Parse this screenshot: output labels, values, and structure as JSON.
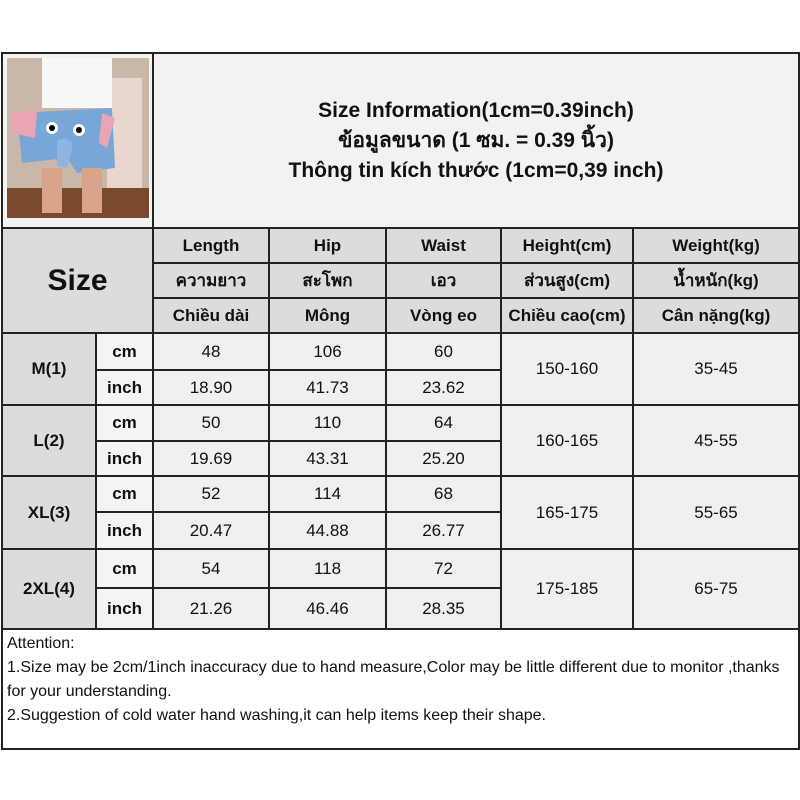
{
  "title_lines": [
    "Size Information(1cm=0.39inch)",
    "ข้อมูลขนาด (1 ซม. = 0.39 นิ้ว)",
    "Thông tin kích thước (1cm=0,39 inch)"
  ],
  "product_image": "blue elephant shorts photo",
  "size_label": "Size",
  "columns": [
    {
      "en": "Length",
      "th": "ความยาว",
      "vi": "Chiều dài"
    },
    {
      "en": "Hip",
      "th": "สะโพก",
      "vi": "Mông"
    },
    {
      "en": "Waist",
      "th": "เอว",
      "vi": "Vòng eo"
    },
    {
      "en": "Height(cm)",
      "th": "ส่วนสูง(cm)",
      "vi": "Chiều cao(cm)"
    },
    {
      "en": "Weight(kg)",
      "th": "น้ำหนัก(kg)",
      "vi": "Cân nặng(kg)"
    }
  ],
  "rows": [
    {
      "size": "M(1)",
      "cm": [
        "48",
        "106",
        "60"
      ],
      "inch": [
        "18.90",
        "41.73",
        "23.62"
      ],
      "height": "150-160",
      "weight": "35-45"
    },
    {
      "size": "L(2)",
      "cm": [
        "50",
        "110",
        "64"
      ],
      "inch": [
        "19.69",
        "43.31",
        "25.20"
      ],
      "height": "160-165",
      "weight": "45-55"
    },
    {
      "size": "XL(3)",
      "cm": [
        "52",
        "114",
        "68"
      ],
      "inch": [
        "20.47",
        "44.88",
        "26.77"
      ],
      "height": "165-175",
      "weight": "55-65"
    },
    {
      "size": "2XL(4)",
      "cm": [
        "54",
        "118",
        "72"
      ],
      "inch": [
        "21.26",
        "46.46",
        "28.35"
      ],
      "height": "175-185",
      "weight": "65-75"
    }
  ],
  "units": {
    "cm": "cm",
    "inch": "inch"
  },
  "attention": [
    "Attention:",
    "1.Size may be 2cm/1inch inaccuracy due to hand measure,Color may be little different due to monitor ,thanks for your understanding.",
    "2.Suggestion of cold water hand washing,it can help items keep their shape."
  ]
}
